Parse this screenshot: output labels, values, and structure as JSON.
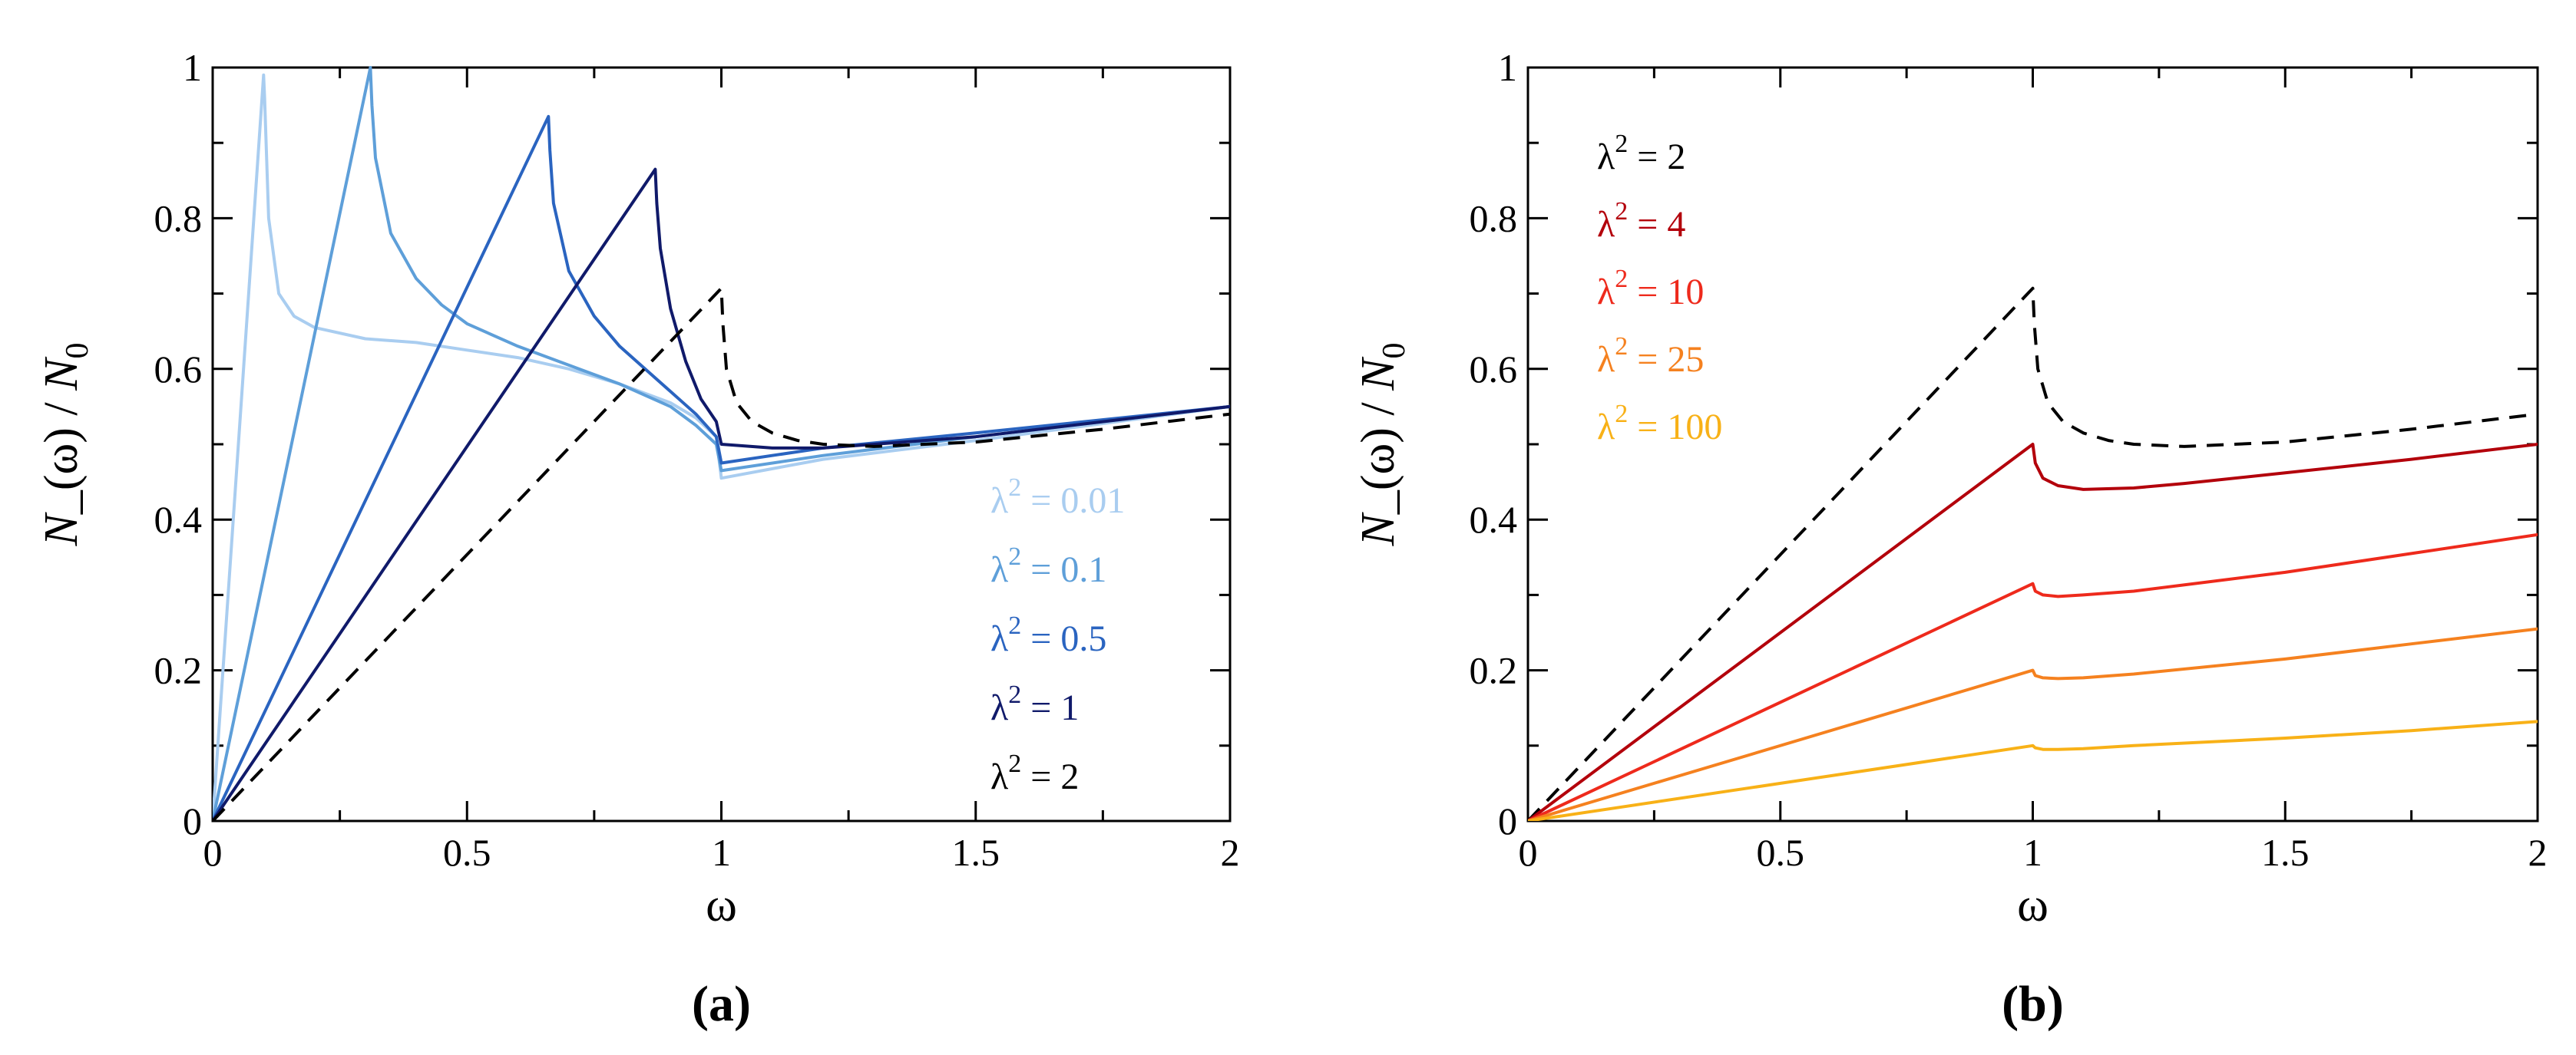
{
  "chart_data": [
    {
      "type": "line",
      "panel_label": "(a)",
      "xlabel": "ω",
      "ylabel": "N_(ω) / N0",
      "ylabel_parts": {
        "main": "N",
        "sub1": "_",
        "mid": "(ω) / N",
        "sub2": "0"
      },
      "xlim": [
        0,
        2
      ],
      "ylim": [
        0,
        1
      ],
      "xticks": [
        0,
        0.5,
        1,
        1.5,
        2
      ],
      "xtick_labels": [
        "0",
        "0.5",
        "1",
        "1.5",
        "2"
      ],
      "yticks": [
        0,
        0.2,
        0.4,
        0.6,
        0.8,
        1
      ],
      "ytick_labels": [
        "0",
        "0.2",
        "0.4",
        "0.6",
        "0.8",
        "1"
      ],
      "legend_position": "lower-right",
      "series": [
        {
          "name": "λ2 = 0.01",
          "label_main": "λ",
          "label_sup": "2",
          "label_rest": " = 0.01",
          "color": "#a9cdf0",
          "dashed": false,
          "x": [
            0,
            0.1,
            0.102,
            0.11,
            0.13,
            0.16,
            0.2,
            0.3,
            0.4,
            0.5,
            0.6,
            0.7,
            0.8,
            0.9,
            0.95,
            0.99,
            1.0,
            1.2,
            1.5,
            2.0
          ],
          "y": [
            0,
            0.99,
            0.96,
            0.8,
            0.7,
            0.67,
            0.655,
            0.64,
            0.635,
            0.625,
            0.615,
            0.6,
            0.58,
            0.555,
            0.535,
            0.51,
            0.455,
            0.48,
            0.505,
            0.55
          ]
        },
        {
          "name": "λ2 = 0.1",
          "label_main": "λ",
          "label_sup": "2",
          "label_rest": " = 0.1",
          "color": "#5e9fd9",
          "dashed": false,
          "x": [
            0,
            0.31,
            0.313,
            0.32,
            0.35,
            0.4,
            0.45,
            0.5,
            0.6,
            0.7,
            0.8,
            0.9,
            0.95,
            0.99,
            1.0,
            1.2,
            1.5,
            2.0
          ],
          "y": [
            0,
            1.0,
            0.95,
            0.88,
            0.78,
            0.72,
            0.685,
            0.66,
            0.63,
            0.605,
            0.58,
            0.55,
            0.525,
            0.5,
            0.465,
            0.485,
            0.51,
            0.55
          ]
        },
        {
          "name": "λ2 = 0.5",
          "label_main": "λ",
          "label_sup": "2",
          "label_rest": " = 0.5",
          "color": "#2a64c0",
          "dashed": false,
          "x": [
            0,
            0.66,
            0.663,
            0.67,
            0.7,
            0.75,
            0.8,
            0.85,
            0.9,
            0.95,
            0.99,
            1.0,
            1.2,
            1.5,
            2.0
          ],
          "y": [
            0,
            0.935,
            0.89,
            0.82,
            0.73,
            0.67,
            0.63,
            0.6,
            0.57,
            0.54,
            0.51,
            0.475,
            0.495,
            0.515,
            0.55
          ]
        },
        {
          "name": "λ2 = 1",
          "label_main": "λ",
          "label_sup": "2",
          "label_rest": " = 1",
          "color": "#101a6a",
          "dashed": false,
          "x": [
            0,
            0.87,
            0.873,
            0.88,
            0.9,
            0.93,
            0.96,
            0.99,
            1.0,
            1.1,
            1.2,
            1.5,
            2.0
          ],
          "y": [
            0,
            0.865,
            0.82,
            0.76,
            0.68,
            0.61,
            0.56,
            0.53,
            0.5,
            0.495,
            0.495,
            0.51,
            0.55
          ]
        },
        {
          "name": "λ2 = 2",
          "label_main": "λ",
          "label_sup": "2",
          "label_rest": " = 2",
          "color": "#000000",
          "dashed": true,
          "x": [
            0,
            1.0,
            1.003,
            1.01,
            1.03,
            1.06,
            1.1,
            1.15,
            1.2,
            1.3,
            1.5,
            1.75,
            2.0
          ],
          "y": [
            0,
            0.707,
            0.66,
            0.6,
            0.555,
            0.53,
            0.515,
            0.505,
            0.5,
            0.497,
            0.503,
            0.52,
            0.54
          ]
        }
      ]
    },
    {
      "type": "line",
      "panel_label": "(b)",
      "xlabel": "ω",
      "ylabel": "N_(ω) / N0",
      "ylabel_parts": {
        "main": "N",
        "sub1": "_",
        "mid": "(ω) / N",
        "sub2": "0"
      },
      "xlim": [
        0,
        2
      ],
      "ylim": [
        0,
        1
      ],
      "xticks": [
        0,
        0.5,
        1,
        1.5,
        2
      ],
      "xtick_labels": [
        "0",
        "0.5",
        "1",
        "1.5",
        "2"
      ],
      "yticks": [
        0,
        0.2,
        0.4,
        0.6,
        0.8,
        1
      ],
      "ytick_labels": [
        "0",
        "0.2",
        "0.4",
        "0.6",
        "0.8",
        "1"
      ],
      "legend_position": "top-left",
      "series": [
        {
          "name": "λ2 = 2",
          "label_main": "λ",
          "label_sup": "2",
          "label_rest": " = 2",
          "color": "#000000",
          "dashed": true,
          "x": [
            0,
            1.0,
            1.003,
            1.01,
            1.03,
            1.06,
            1.1,
            1.15,
            1.2,
            1.3,
            1.5,
            1.75,
            2.0
          ],
          "y": [
            0,
            0.707,
            0.66,
            0.6,
            0.555,
            0.53,
            0.515,
            0.505,
            0.5,
            0.497,
            0.503,
            0.52,
            0.54
          ]
        },
        {
          "name": "λ2 = 4",
          "label_main": "λ",
          "label_sup": "2",
          "label_rest": " = 4",
          "color": "#b3000b",
          "dashed": false,
          "x": [
            0,
            1.0,
            1.005,
            1.02,
            1.05,
            1.1,
            1.2,
            1.3,
            1.5,
            1.75,
            2.0
          ],
          "y": [
            0,
            0.5,
            0.475,
            0.455,
            0.445,
            0.44,
            0.442,
            0.448,
            0.462,
            0.48,
            0.5
          ]
        },
        {
          "name": "λ2 = 10",
          "label_main": "λ",
          "label_sup": "2",
          "label_rest": " = 10",
          "color": "#ee2a1c",
          "dashed": false,
          "x": [
            0,
            1.0,
            1.005,
            1.02,
            1.05,
            1.1,
            1.2,
            1.5,
            1.75,
            2.0
          ],
          "y": [
            0,
            0.315,
            0.305,
            0.3,
            0.298,
            0.3,
            0.305,
            0.33,
            0.355,
            0.38
          ]
        },
        {
          "name": "λ2 = 25",
          "label_main": "λ",
          "label_sup": "2",
          "label_rest": " = 25",
          "color": "#f5811f",
          "dashed": false,
          "x": [
            0,
            1.0,
            1.005,
            1.02,
            1.05,
            1.1,
            1.2,
            1.5,
            1.75,
            2.0
          ],
          "y": [
            0,
            0.2,
            0.193,
            0.19,
            0.189,
            0.19,
            0.195,
            0.215,
            0.235,
            0.255
          ]
        },
        {
          "name": "λ2 = 100",
          "label_main": "λ",
          "label_sup": "2",
          "label_rest": " = 100",
          "color": "#f8b117",
          "dashed": false,
          "x": [
            0,
            1.0,
            1.005,
            1.02,
            1.05,
            1.1,
            1.2,
            1.5,
            1.75,
            2.0
          ],
          "y": [
            0,
            0.1,
            0.097,
            0.095,
            0.095,
            0.096,
            0.1,
            0.11,
            0.12,
            0.132
          ]
        }
      ]
    }
  ]
}
